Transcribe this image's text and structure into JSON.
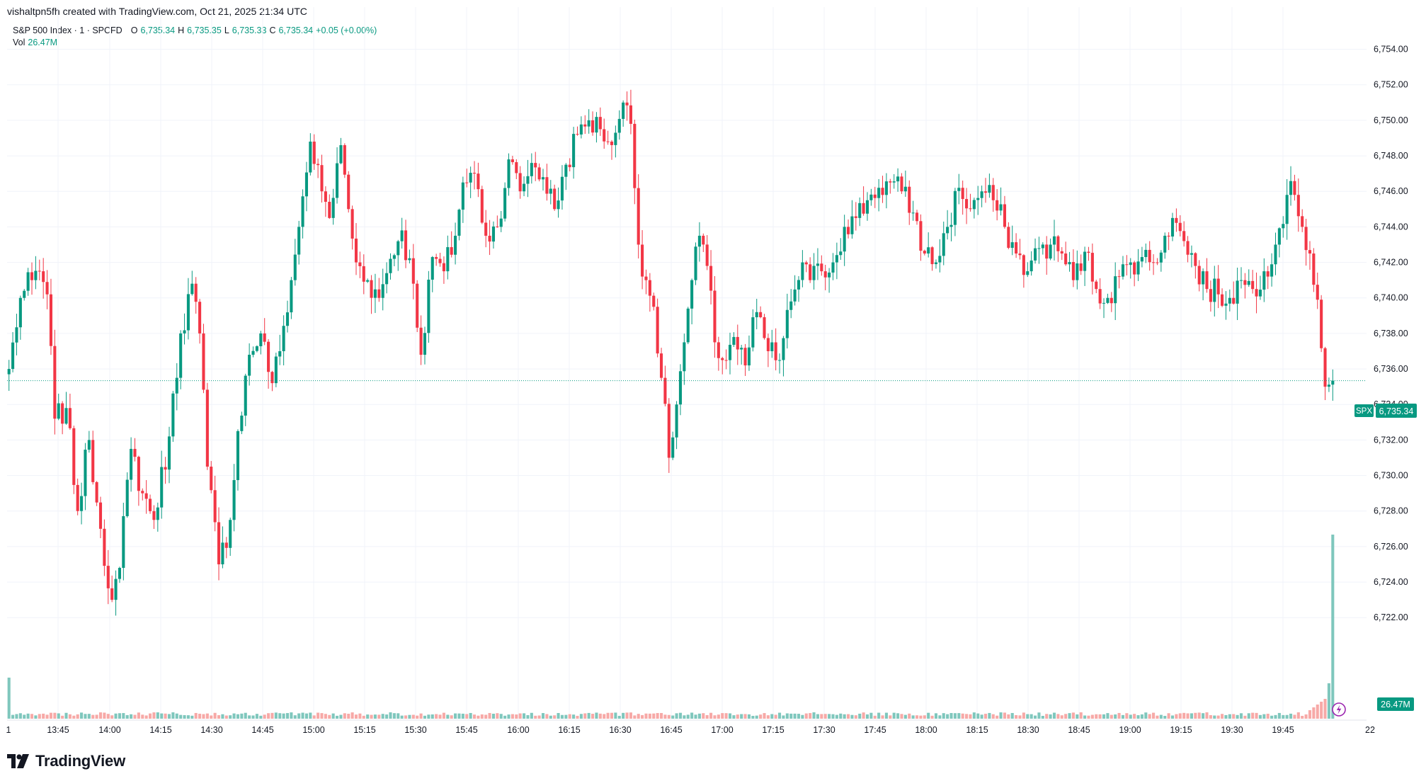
{
  "header": {
    "created_text": "vishaltpn5fh created with TradingView.com, Oct 21, 2025 21:34 UTC"
  },
  "legend": {
    "symbol": "S&P 500 Index · 1 · SPCFD",
    "o_label": "O",
    "o_value": "6,735.34",
    "h_label": "H",
    "h_value": "6,735.35",
    "l_label": "L",
    "l_value": "6,735.33",
    "c_label": "C",
    "c_value": "6,735.34",
    "change": "+0.05 (+0.00%)",
    "vol_label": "Vol",
    "vol_value": "26.47M"
  },
  "badges": {
    "symbol_tag": "SPX",
    "last_price": "6,735.34",
    "volume": "26.47M"
  },
  "brand": {
    "name": "TradingView"
  },
  "colors": {
    "up": "#089981",
    "down": "#f23645",
    "vol_up": "#7fc7bd",
    "vol_down": "#f7a9a7",
    "grid": "#f0f3fa",
    "text": "#131722"
  },
  "chart_data": {
    "type": "candlestick",
    "title": "S&P 500 Index · 1 · SPCFD",
    "ylim": [
      6720,
      6756
    ],
    "y_ticks": [
      "6,722.00",
      "6,724.00",
      "6,726.00",
      "6,728.00",
      "6,730.00",
      "6,732.00",
      "6,734.00",
      "6,736.00",
      "6,738.00",
      "6,740.00",
      "6,742.00",
      "6,744.00",
      "6,746.00",
      "6,748.00",
      "6,750.00",
      "6,752.00",
      "6,754.00"
    ],
    "x_ticks": [
      "1",
      "13:45",
      "14:00",
      "14:15",
      "14:30",
      "14:45",
      "15:00",
      "15:15",
      "15:30",
      "15:45",
      "16:00",
      "16:15",
      "16:30",
      "16:45",
      "17:00",
      "17:15",
      "17:30",
      "17:45",
      "18:00",
      "18:15",
      "18:30",
      "18:45",
      "19:00",
      "19:15",
      "19:30",
      "19:45",
      "22"
    ],
    "last_price": 6735.34,
    "close_path": [
      [
        0,
        6736.0
      ],
      [
        3,
        6740.0
      ],
      [
        6,
        6741.0
      ],
      [
        8,
        6741.5
      ],
      [
        10,
        6740.2
      ],
      [
        12,
        6733.2
      ],
      [
        15,
        6733.8
      ],
      [
        18,
        6728.0
      ],
      [
        21,
        6732.0
      ],
      [
        24,
        6727.0
      ],
      [
        27,
        6723.0
      ],
      [
        29,
        6724.8
      ],
      [
        32,
        6731.5
      ],
      [
        35,
        6729.0
      ],
      [
        38,
        6727.5
      ],
      [
        42,
        6732.2
      ],
      [
        45,
        6738.0
      ],
      [
        48,
        6740.8
      ],
      [
        50,
        6738.0
      ],
      [
        52,
        6730.5
      ],
      [
        55,
        6725.0
      ],
      [
        58,
        6727.5
      ],
      [
        60,
        6732.5
      ],
      [
        63,
        6736.8
      ],
      [
        66,
        6738.0
      ],
      [
        69,
        6735.2
      ],
      [
        71,
        6737.0
      ],
      [
        74,
        6741.0
      ],
      [
        76,
        6744.0
      ],
      [
        79,
        6748.8
      ],
      [
        82,
        6746.0
      ],
      [
        84,
        6744.5
      ],
      [
        87,
        6748.6
      ],
      [
        89,
        6745.0
      ],
      [
        91,
        6742.0
      ],
      [
        94,
        6741.0
      ],
      [
        97,
        6740.0
      ],
      [
        100,
        6742.2
      ],
      [
        103,
        6743.8
      ],
      [
        106,
        6740.8
      ],
      [
        108,
        6736.8
      ],
      [
        111,
        6742.3
      ],
      [
        114,
        6741.5
      ],
      [
        117,
        6743.5
      ],
      [
        119,
        6746.5
      ],
      [
        122,
        6747.0
      ],
      [
        125,
        6743.5
      ],
      [
        128,
        6744.0
      ],
      [
        131,
        6747.8
      ],
      [
        134,
        6746.0
      ],
      [
        137,
        6747.6
      ],
      [
        140,
        6746.8
      ],
      [
        143,
        6745.0
      ],
      [
        146,
        6747.5
      ],
      [
        149,
        6749.2
      ],
      [
        152,
        6750.0
      ],
      [
        155,
        6749.5
      ],
      [
        157,
        6748.8
      ],
      [
        159,
        6749.3
      ],
      [
        161,
        6751.0
      ],
      [
        163,
        6749.8
      ],
      [
        165,
        6743.0
      ],
      [
        167,
        6741.0
      ],
      [
        169,
        6739.5
      ],
      [
        171,
        6735.5
      ],
      [
        173,
        6731.0
      ],
      [
        175,
        6734.0
      ],
      [
        177,
        6737.5
      ],
      [
        179,
        6741.0
      ],
      [
        181,
        6743.5
      ],
      [
        183,
        6741.8
      ],
      [
        185,
        6737.5
      ],
      [
        187,
        6736.5
      ],
      [
        190,
        6737.8
      ],
      [
        193,
        6736.2
      ],
      [
        196,
        6739.2
      ],
      [
        199,
        6737.0
      ],
      [
        202,
        6736.5
      ],
      [
        205,
        6739.8
      ],
      [
        208,
        6742.0
      ],
      [
        210,
        6741.0
      ],
      [
        213,
        6741.5
      ],
      [
        216,
        6742.0
      ],
      [
        219,
        6744.0
      ],
      [
        222,
        6744.5
      ],
      [
        225,
        6745.5
      ],
      [
        228,
        6746.2
      ],
      [
        231,
        6746.5
      ],
      [
        234,
        6746.0
      ],
      [
        237,
        6744.8
      ],
      [
        240,
        6742.5
      ],
      [
        243,
        6742.0
      ],
      [
        246,
        6744.0
      ],
      [
        249,
        6746.2
      ],
      [
        252,
        6745.0
      ],
      [
        255,
        6746.0
      ],
      [
        258,
        6745.5
      ],
      [
        261,
        6744.0
      ],
      [
        264,
        6742.5
      ],
      [
        267,
        6741.5
      ],
      [
        270,
        6742.8
      ],
      [
        273,
        6743.0
      ],
      [
        276,
        6742.5
      ],
      [
        279,
        6741.0
      ],
      [
        282,
        6742.6
      ],
      [
        285,
        6740.5
      ],
      [
        288,
        6740.0
      ],
      [
        291,
        6741.2
      ],
      [
        294,
        6742.0
      ],
      [
        297,
        6742.3
      ],
      [
        300,
        6742.0
      ],
      [
        303,
        6743.5
      ],
      [
        305,
        6744.5
      ],
      [
        308,
        6743.2
      ],
      [
        311,
        6741.8
      ],
      [
        314,
        6740.5
      ],
      [
        317,
        6740.2
      ],
      [
        320,
        6740.0
      ],
      [
        323,
        6741.0
      ],
      [
        326,
        6740.5
      ],
      [
        329,
        6741.5
      ],
      [
        332,
        6743.0
      ],
      [
        335,
        6745.8
      ],
      [
        337,
        6745.8
      ],
      [
        339,
        6744.0
      ],
      [
        341,
        6742.5
      ],
      [
        343,
        6739.9
      ],
      [
        345,
        6735.0
      ],
      [
        347,
        6735.34
      ]
    ],
    "volume": {
      "last": "26.47M",
      "last_spike_relative": 8.5
    }
  }
}
